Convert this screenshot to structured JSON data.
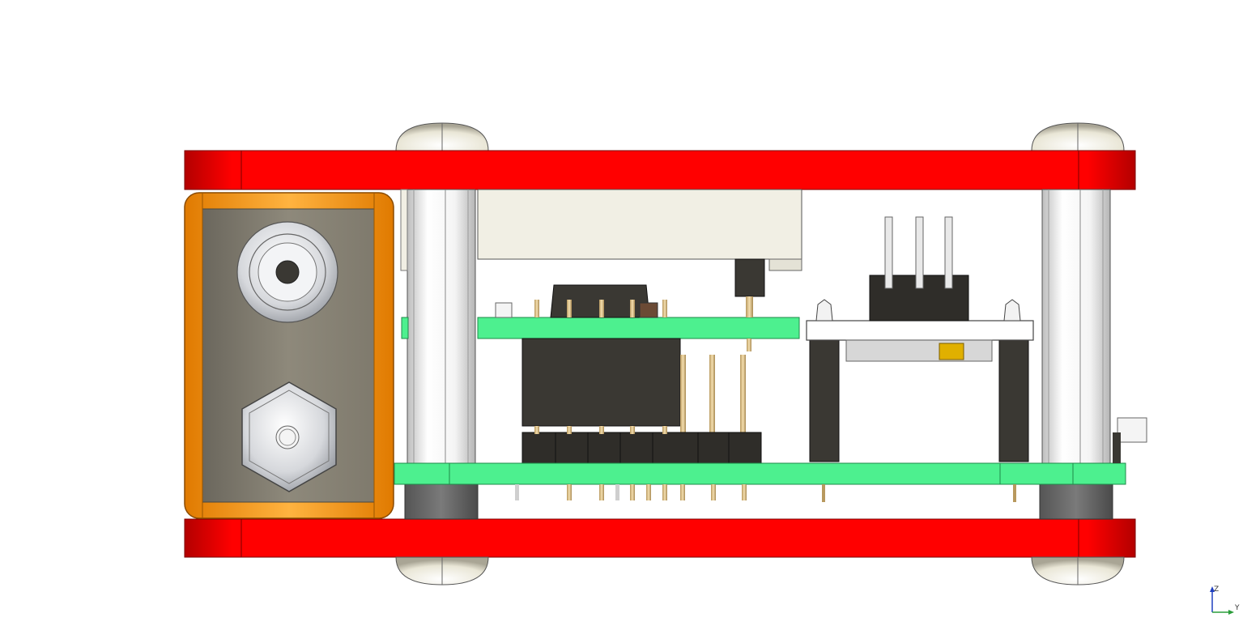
{
  "view": {
    "orientation_triad": {
      "axes": [
        {
          "label": "Z",
          "color": "#1f3fbf"
        },
        {
          "label": "Y",
          "color": "#2a9d3a"
        }
      ]
    }
  },
  "colors": {
    "plate": "#ff0000",
    "plate_shadow": "#b30000",
    "pcb": "#4df08f",
    "pcb_edge": "#1e8a4a",
    "standoff": "#eaeaea",
    "bracket": "#ff9a1a",
    "bracket_face": "#878274",
    "connector_body": "#3a3833",
    "header_pin": "#e8c98a",
    "screw": "#f2f0e6"
  }
}
